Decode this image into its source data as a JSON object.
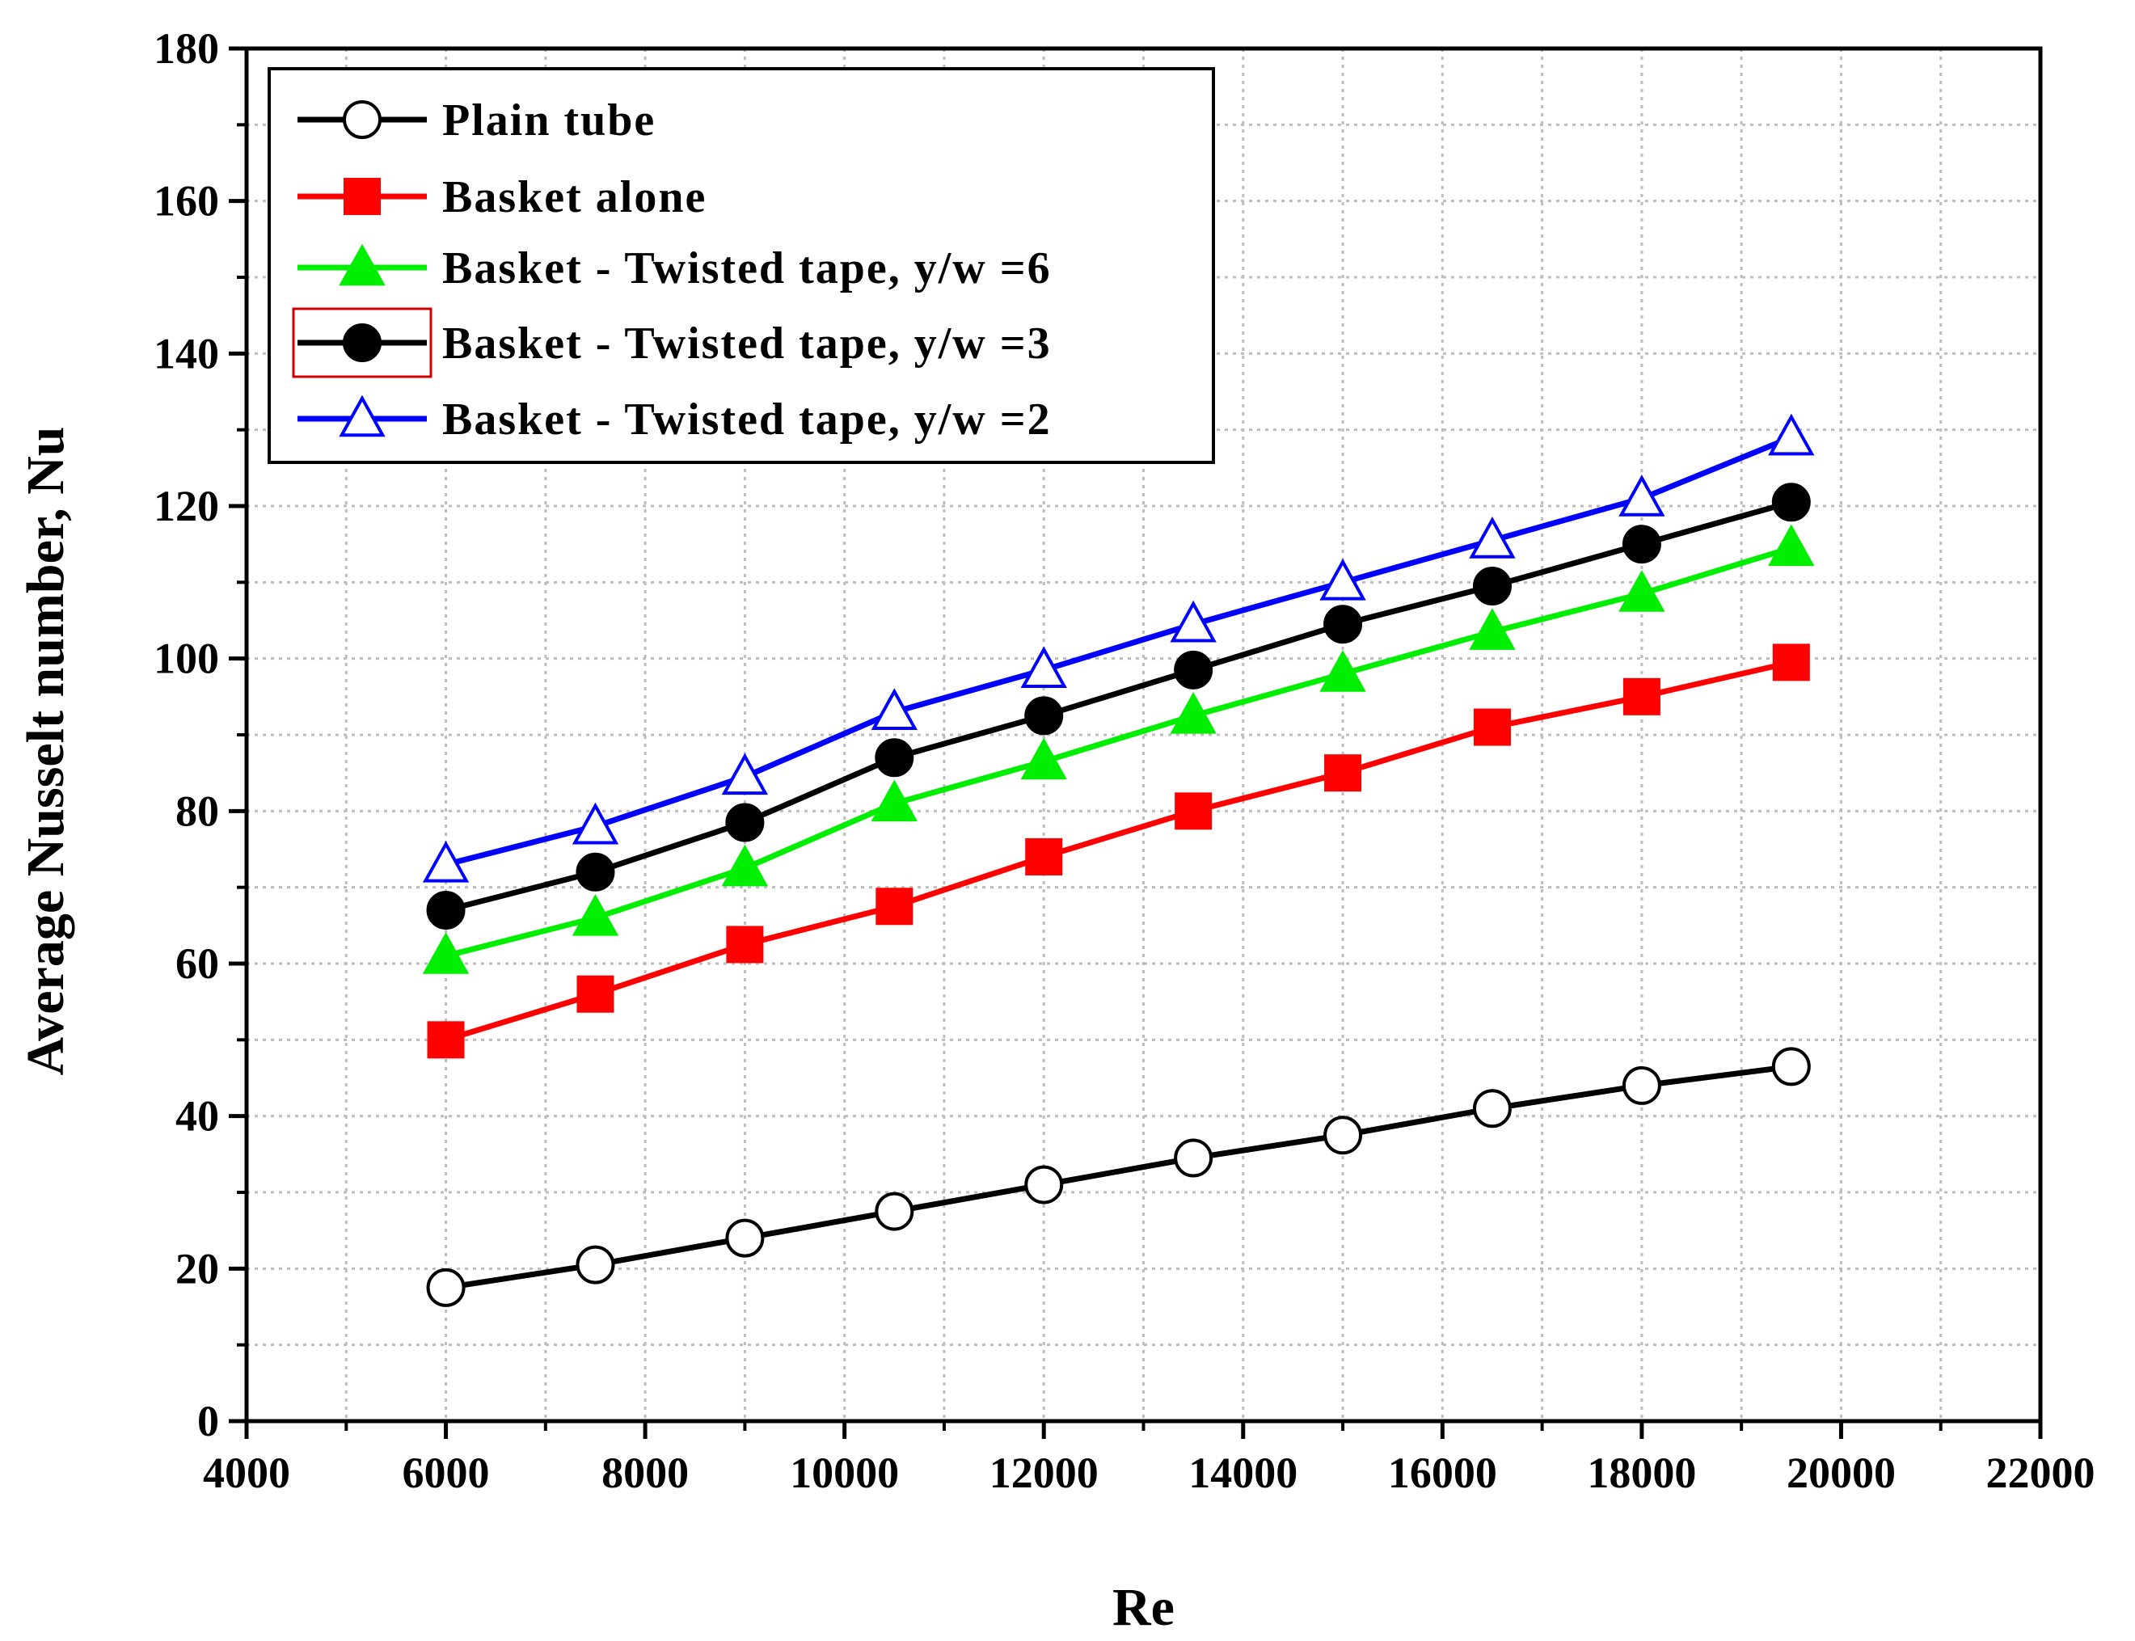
{
  "chart_data": {
    "type": "line",
    "xlabel": "Re",
    "ylabel": "Average Nusselt number, Nu",
    "xlim": [
      4000,
      22000
    ],
    "ylim": [
      0,
      180
    ],
    "xticks": [
      4000,
      6000,
      8000,
      10000,
      12000,
      14000,
      16000,
      18000,
      20000,
      22000
    ],
    "yticks": [
      0,
      20,
      40,
      60,
      80,
      100,
      120,
      140,
      160,
      180
    ],
    "grid": true,
    "legend_position": "top-left",
    "x": [
      6000,
      7500,
      9000,
      10500,
      12000,
      13500,
      15000,
      16500,
      18000,
      19500
    ],
    "series": [
      {
        "name": "Plain tube",
        "color": "#000000",
        "marker": "circle-open",
        "values": [
          17.5,
          20.5,
          24,
          27.5,
          31,
          34.5,
          37.5,
          41,
          44,
          46.5
        ]
      },
      {
        "name": "Basket alone",
        "color": "#ff0000",
        "marker": "square-filled",
        "values": [
          50,
          56,
          62.5,
          67.5,
          74,
          80,
          85,
          91,
          95,
          99.5
        ]
      },
      {
        "name": "Basket - Twisted tape, y/w =6",
        "color": "#00ee00",
        "marker": "triangle-filled",
        "values": [
          61,
          66,
          72.5,
          81,
          86.5,
          92.5,
          98,
          103.5,
          108.5,
          114.5
        ]
      },
      {
        "name": "Basket - Twisted tape, y/w =3",
        "color": "#000000",
        "marker": "circle-filled",
        "values": [
          67,
          72,
          78.5,
          87,
          92.5,
          98.5,
          104.5,
          109.5,
          115,
          120.5
        ]
      },
      {
        "name": "Basket - Twisted tape, y/w =2",
        "color": "#0000ff",
        "marker": "triangle-open",
        "values": [
          73,
          78,
          84.5,
          93,
          98.5,
          104.5,
          110,
          115.5,
          121,
          129
        ]
      }
    ]
  }
}
